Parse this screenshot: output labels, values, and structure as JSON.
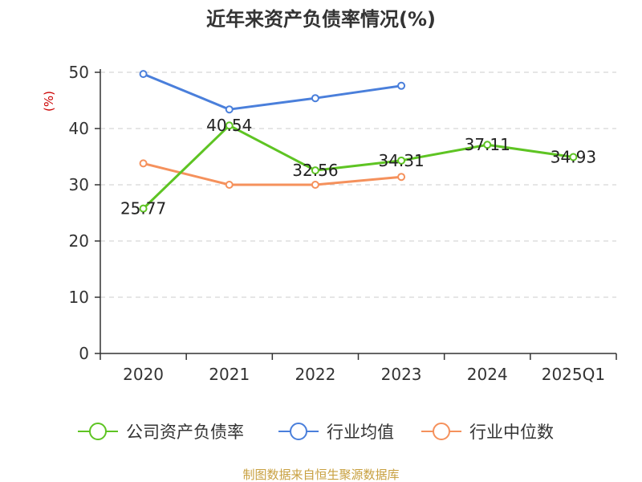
{
  "chart_data": {
    "type": "line",
    "title": "近年来资产负债率情况(%)",
    "ylabel": "(%)",
    "categories": [
      "2020",
      "2021",
      "2022",
      "2023",
      "2024",
      "2025Q1"
    ],
    "ylim": [
      0,
      50
    ],
    "yticks": [
      0,
      10,
      20,
      30,
      40,
      50
    ],
    "grid": true,
    "legend_position": "bottom",
    "series": [
      {
        "name": "公司资产负债率",
        "color": "#5ec423",
        "values": [
          25.77,
          40.54,
          32.56,
          34.31,
          37.11,
          34.93
        ],
        "labels": [
          "25.77",
          "40.54",
          "32.56",
          "34.31",
          "37.11",
          "34.93"
        ]
      },
      {
        "name": "行业均值",
        "color": "#4a7fdb",
        "values": [
          49.7,
          43.4,
          45.4,
          47.6,
          null,
          null
        ]
      },
      {
        "name": "行业中位数",
        "color": "#f5915c",
        "values": [
          33.8,
          30.0,
          30.0,
          31.4,
          null,
          null
        ]
      }
    ]
  },
  "source_text": "制图数据来自恒生聚源数据库",
  "colors": {
    "ylabel": "#cc0000",
    "source": "#c8a040",
    "axis": "#333333",
    "grid": "#cccccc"
  }
}
